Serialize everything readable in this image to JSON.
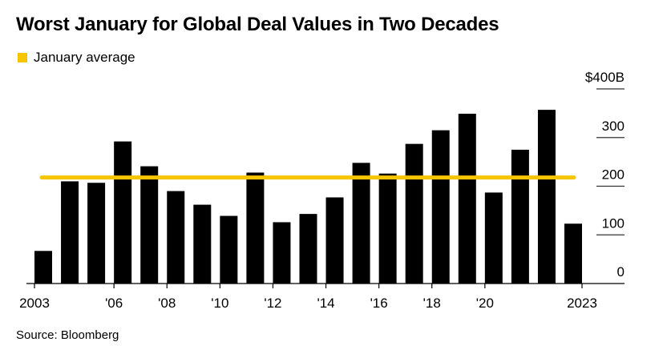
{
  "title": "Worst January for Global Deal Values in Two Decades",
  "legend": [
    {
      "label": "January average",
      "color": "#f7c500"
    }
  ],
  "source": "Source: Bloomberg",
  "chart_data": {
    "type": "bar",
    "title": "Worst January for Global Deal Values in Two Decades",
    "xlabel": "",
    "ylabel": "",
    "categories": [
      "2003",
      "2004",
      "2005",
      "2006",
      "2007",
      "2008",
      "2009",
      "2010",
      "2011",
      "2012",
      "2013",
      "2014",
      "2015",
      "2016",
      "2017",
      "2018",
      "2019",
      "2020",
      "2021",
      "2022",
      "2023"
    ],
    "values": [
      67,
      210,
      207,
      292,
      241,
      190,
      162,
      139,
      228,
      126,
      143,
      177,
      248,
      226,
      287,
      315,
      349,
      187,
      275,
      357,
      123
    ],
    "unit": "USD billions",
    "bar_color": "#000000",
    "reference_line": {
      "label": "January average",
      "value": 218,
      "color": "#f7c500"
    },
    "ylim": [
      0,
      400
    ],
    "y_ticks": [
      {
        "value": 0,
        "label": "0"
      },
      {
        "value": 100,
        "label": "100"
      },
      {
        "value": 200,
        "label": "200"
      },
      {
        "value": 300,
        "label": "300"
      },
      {
        "value": 400,
        "label": "$400B"
      }
    ],
    "x_ticks": [
      {
        "category": "2003",
        "label": "2003"
      },
      {
        "category": "2006",
        "label": "'06"
      },
      {
        "category": "2008",
        "label": "'08"
      },
      {
        "category": "2010",
        "label": "'10"
      },
      {
        "category": "2012",
        "label": "'12"
      },
      {
        "category": "2014",
        "label": "'14"
      },
      {
        "category": "2016",
        "label": "'16"
      },
      {
        "category": "2018",
        "label": "'18"
      },
      {
        "category": "2020",
        "label": "'20"
      },
      {
        "category": "2023",
        "label": "2023"
      }
    ],
    "grid": true,
    "y_axis_position": "right",
    "legend_position": "top-left"
  }
}
